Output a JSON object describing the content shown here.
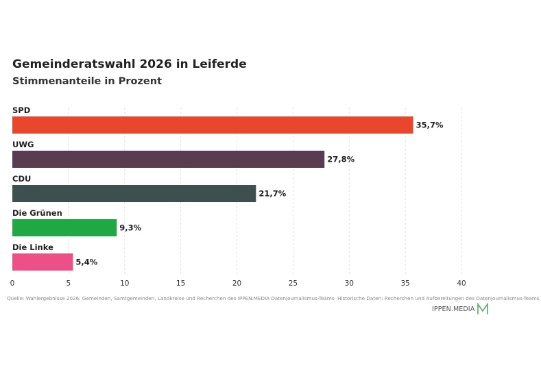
{
  "header": {
    "title": "Gemeinderatswahl 2026 in Leiferde",
    "subtitle": "Stimmenanteile in Prozent"
  },
  "chart_data": {
    "type": "bar",
    "orientation": "horizontal",
    "categories": [
      "SPD",
      "UWG",
      "CDU",
      "Die Grünen",
      "Die Linke"
    ],
    "values": [
      35.7,
      27.8,
      21.7,
      9.3,
      5.4
    ],
    "value_labels": [
      "35,7%",
      "27,8%",
      "21,7%",
      "9,3%",
      "5,4%"
    ],
    "colors": [
      "#e8472e",
      "#5a3c51",
      "#3e4f4f",
      "#22a745",
      "#ec5086"
    ],
    "xlim": [
      0,
      40
    ],
    "xticks": [
      0,
      5,
      10,
      15,
      20,
      25,
      30,
      35,
      40
    ],
    "grid": true,
    "title": "Gemeinderatswahl 2026 in Leiferde",
    "subtitle": "Stimmenanteile in Prozent"
  },
  "footer": {
    "source": "Quelle: Wahlergebnisse 2026: Gemeinden, Samtgemeinden, Landkreise und Recherchen des IPPEN.MEDIA Datenjournalismus-Teams. Historische Daten: Recherchen und Aufbereitungen des Datenjournalismus-Teams.",
    "logo_text": "IPPEN.MEDIA",
    "logo_color": "#5aa86a"
  }
}
